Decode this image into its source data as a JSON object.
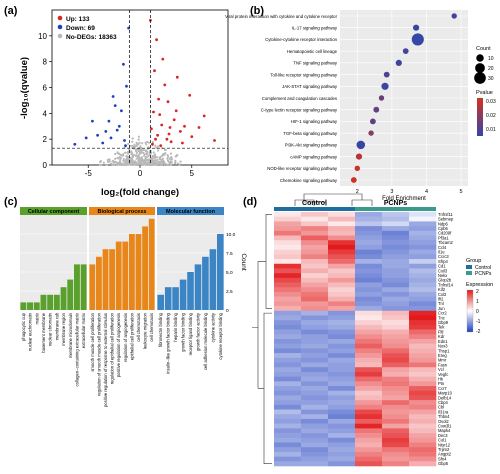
{
  "panel_labels": [
    "(a)",
    "(b)",
    "(c)",
    "(d)"
  ],
  "colors": {
    "up": "#d62728",
    "down": "#1f3fbf",
    "nodeg": "#b8b8b8",
    "go_cc": "#5aa02c",
    "go_bp": "#e8861a",
    "go_mf": "#3b85c4",
    "control": "#1f6e9f",
    "pcnps": "#3a9a8d",
    "heat_high": "#e31a1c",
    "heat_mid": "#ffffff",
    "heat_low": "#1f3fbf"
  },
  "chart_data": [
    {
      "type": "scatter",
      "panel": "a",
      "title": "",
      "xlabel": "log₂(fold change)",
      "ylabel": "-log₁₀(qvalue)",
      "xlim": [
        -8.5,
        8.5
      ],
      "ylim": [
        0,
        12
      ],
      "xticks": [
        -5,
        0,
        5
      ],
      "yticks": [
        0,
        2,
        4,
        6,
        8,
        10
      ],
      "grid": false,
      "legend_position": "top-left",
      "legend": [
        "Up: 133",
        "Down: 69",
        "No-DEGs: 18363"
      ],
      "threshold_lines": {
        "x": [
          -1,
          1
        ],
        "y": 1.3
      },
      "series": [
        {
          "name": "Up: 133",
          "color_key": "up",
          "count": 133,
          "points": [
            [
              1.5,
              2.0
            ],
            [
              2.1,
              3.1
            ],
            [
              2.8,
              2.4
            ],
            [
              3.5,
              4.2
            ],
            [
              1.2,
              1.6
            ],
            [
              4.3,
              3.0
            ],
            [
              5.0,
              2.2
            ],
            [
              1.8,
              5.1
            ],
            [
              2.4,
              6.2
            ],
            [
              3.0,
              1.8
            ],
            [
              6.2,
              3.8
            ],
            [
              1.4,
              7.3
            ],
            [
              2.7,
              4.9
            ],
            [
              3.9,
              2.6
            ],
            [
              1.6,
              9.7
            ],
            [
              2.2,
              8.2
            ],
            [
              4.8,
              5.4
            ],
            [
              1.1,
              2.8
            ],
            [
              3.3,
              3.5
            ],
            [
              2.0,
              1.5
            ],
            [
              5.7,
              2.9
            ],
            [
              1.3,
              4.1
            ],
            [
              2.6,
              2.0
            ],
            [
              4.1,
              1.7
            ],
            [
              1.9,
              3.9
            ],
            [
              1.0,
              11.2
            ],
            [
              3.6,
              6.8
            ],
            [
              2.9,
              2.9
            ],
            [
              1.7,
              2.3
            ],
            [
              7.2,
              1.9
            ]
          ]
        },
        {
          "name": "Down: 69",
          "color_key": "down",
          "count": 69,
          "points": [
            [
              -1.5,
              1.9
            ],
            [
              -2.2,
              2.7
            ],
            [
              -3.0,
              3.4
            ],
            [
              -1.8,
              4.2
            ],
            [
              -4.1,
              2.3
            ],
            [
              -2.6,
              5.3
            ],
            [
              -1.3,
              6.1
            ],
            [
              -3.6,
              1.7
            ],
            [
              -5.2,
              2.1
            ],
            [
              -2.0,
              3.0
            ],
            [
              -1.1,
              10.6
            ],
            [
              -6.3,
              1.6
            ],
            [
              -2.8,
              2.1
            ],
            [
              -1.6,
              7.8
            ],
            [
              -3.3,
              2.6
            ],
            [
              -4.6,
              3.4
            ],
            [
              -1.4,
              1.5
            ],
            [
              -2.4,
              4.6
            ]
          ]
        },
        {
          "name": "No-DEGs: 18363",
          "color_key": "nodeg",
          "count": 18363
        }
      ]
    },
    {
      "type": "scatter",
      "panel": "b",
      "title": "",
      "xlabel": "Fold Enrichment",
      "ylabel": "",
      "xlim": [
        1.5,
        5.2
      ],
      "xticks": [
        2,
        3,
        4,
        5
      ],
      "grid": true,
      "legend_position": "right",
      "size_legend_title": "Count",
      "size_legend": [
        10,
        20,
        30
      ],
      "color_legend_title": "Pvalue",
      "color_legend_ticks": [
        "0.03",
        "0.02",
        "0.01"
      ],
      "color_scale": [
        "#d7301f",
        "#3346a8"
      ],
      "pvalue_range": [
        0.0,
        0.035
      ],
      "categories": [
        "Viral protein interaction with cytokine and cytokine receptor",
        "IL-17 signaling pathway",
        "Cytokine-cytokine receptor interaction",
        "Hematopoietic cell lineage",
        "TNF signaling pathway",
        "Toll-like receptor signaling pathway",
        "JAK-STAT signaling pathway",
        "Complement and coagulation cascades",
        "C-type lectin receptor signaling pathway",
        "HIF-1 signaling pathway",
        "TGF-beta signaling pathway",
        "PI3K-Akt signaling pathway",
        "cAMP signaling pathway",
        "NOD-like receptor signaling pathway",
        "Chemokine signaling pathway"
      ],
      "x": [
        4.8,
        3.7,
        3.75,
        3.4,
        3.2,
        2.85,
        2.8,
        2.7,
        2.55,
        2.45,
        2.4,
        2.1,
        2.05,
        2.0,
        1.9
      ],
      "count": [
        4,
        6,
        33,
        5,
        6,
        5,
        9,
        4,
        5,
        5,
        4,
        14,
        6,
        4,
        5
      ],
      "pvalue": [
        0.003,
        0.001,
        0.0005,
        0.004,
        0.003,
        0.006,
        0.002,
        0.012,
        0.01,
        0.009,
        0.018,
        0.001,
        0.028,
        0.032,
        0.033
      ]
    },
    {
      "type": "bar",
      "panel": "c",
      "title": "",
      "xlabel": "",
      "ylabel": "Count",
      "ylim": [
        0,
        12.5
      ],
      "yticks": [
        0,
        2.5,
        5.0,
        7.5,
        10.0
      ],
      "grid": true,
      "groups": [
        {
          "name": "Cellular component",
          "color_key": "go_cc",
          "categories": [
            "phagocytic cup",
            "nuclear euchromatin",
            "matrix",
            "basement membrane",
            "nuclear chromatin",
            "membrane raft",
            "membrane region",
            "membrane microdomain",
            "collagen−containing extracellular matrix",
            "extracellular matrix"
          ],
          "values": [
            1,
            1,
            1,
            2,
            2,
            2,
            3,
            4,
            6,
            6
          ]
        },
        {
          "name": "Biological process",
          "color_key": "go_bp",
          "categories": [
            "smooth muscle cell proliferation",
            "regulation of smooth muscle cell proliferation",
            "positive regulation of response to external stimulus",
            "regulation of epithelial cell proliferation",
            "positive regulation of angiogenesis",
            "regulation of angiogenesis",
            "epithelial cell proliferation",
            "cell chemotaxis",
            "leukocyte migration",
            "cell chemotaxis"
          ],
          "values": [
            6,
            7,
            8,
            8,
            9,
            9,
            10,
            10,
            11,
            12
          ]
        },
        {
          "name": "Molecular function",
          "color_key": "go_mf",
          "categories": [
            "fibronectin binding",
            "insulin−like growth factor binding",
            "heparin binding",
            "growth factor binding",
            "receptor ligand binding",
            "growth factor activity",
            "cell adhesion molecule binding",
            "cytokine activity",
            "cytokine receptor binding"
          ],
          "values": [
            2,
            3,
            3,
            4,
            5,
            6,
            7,
            8,
            10
          ]
        }
      ]
    },
    {
      "type": "heatmap",
      "panel": "d",
      "title": "",
      "column_groups": [
        "Control",
        "PCNPs"
      ],
      "column_annotation_legend_title": "Group",
      "column_annotation_legend": [
        "Control",
        "PCNPs"
      ],
      "color_legend_title": "Expression",
      "color_range": [
        -2,
        2
      ],
      "color_ticks": [
        "2",
        "1",
        "0",
        "-1",
        "-2"
      ],
      "rows": [
        "Tnfrsf11",
        "Sebmep",
        "Ndp6",
        "Cpb6",
        "Cd209f",
        "Pf3a1",
        "Tbcam2",
        "Ccl4",
        "Il1e",
        "Ccrc3",
        "Sfrp4",
        "Cd1",
        "Cxil3",
        "Nekx",
        "Glop2b",
        "Tnfrsf14",
        "Kif2",
        "Cxl3",
        "Ifi2",
        "Tnl",
        "Jun",
        "Ccr2",
        "Tnc",
        "Gbp9",
        "Tek",
        "Fltl",
        "Kdr",
        "Edn1",
        "Nox3",
        "Thsp1",
        "Ereg",
        "Mmr",
        "Fasn",
        "Vcl",
        "Vegfc",
        "Hk",
        "Ptn",
        "Ccr7",
        "Marp10",
        "Defb14",
        "Cbp4",
        "Cbl",
        "Il31ra",
        "Thbs4",
        "Ovol2",
        "Cxw3l1",
        "Mapk4",
        "Dec3",
        "Col1",
        "Ntsr12",
        "Trjim2",
        "Angpt2",
        "Sfn4",
        "Gbp5"
      ],
      "values": [
        [
          0.2,
          0.5,
          0.3,
          -0.9,
          -0.6,
          -0.3
        ],
        [
          0.4,
          0.2,
          0.6,
          -0.8,
          -0.7,
          -0.1
        ],
        [
          0.8,
          0.5,
          0.2,
          -0.6,
          -0.4,
          -0.9
        ],
        [
          0.9,
          1.1,
          0.7,
          -1.2,
          -0.9,
          -1.0
        ],
        [
          1.2,
          0.9,
          0.6,
          -1.1,
          -1.3,
          -0.8
        ],
        [
          0.6,
          1.4,
          1.0,
          -1.0,
          -1.2,
          -0.9
        ],
        [
          0.3,
          1.0,
          1.8,
          -0.9,
          -1.1,
          -1.0
        ],
        [
          0.2,
          0.8,
          2.0,
          -1.0,
          -1.2,
          -1.1
        ],
        [
          0.4,
          0.9,
          1.7,
          -1.3,
          -1.1,
          -0.9
        ],
        [
          0.5,
          1.1,
          1.5,
          -1.2,
          -1.0,
          -1.0
        ],
        [
          0.2,
          0.6,
          1.3,
          -0.8,
          -0.9,
          -0.5
        ],
        [
          1.8,
          0.5,
          0.8,
          -1.2,
          -0.9,
          -1.0
        ],
        [
          1.5,
          0.7,
          0.5,
          -1.1,
          -1.0,
          -0.7
        ],
        [
          1.9,
          0.4,
          0.6,
          -1.2,
          -1.0,
          -0.8
        ],
        [
          1.6,
          0.6,
          0.9,
          -1.3,
          -1.1,
          -0.9
        ],
        [
          1.4,
          0.8,
          0.6,
          -1.0,
          -1.2,
          -0.8
        ],
        [
          1.2,
          1.0,
          0.4,
          -1.1,
          -0.9,
          -0.7
        ],
        [
          1.0,
          1.2,
          0.5,
          -1.0,
          -1.1,
          -0.9
        ],
        [
          0.8,
          1.3,
          0.7,
          -1.2,
          -0.9,
          -1.0
        ],
        [
          0.9,
          0.9,
          1.1,
          -1.1,
          -1.0,
          -1.2
        ],
        [
          0.7,
          1.0,
          0.8,
          -0.9,
          -1.1,
          -1.1
        ],
        [
          -1.0,
          -0.8,
          -1.1,
          0.3,
          0.6,
          1.9
        ],
        [
          -0.9,
          -1.1,
          -1.0,
          0.2,
          0.5,
          2.0
        ],
        [
          -1.1,
          -0.9,
          -0.8,
          0.4,
          0.3,
          1.8
        ],
        [
          -1.2,
          -1.0,
          -0.9,
          0.6,
          0.4,
          1.7
        ],
        [
          -1.0,
          -1.2,
          -1.1,
          0.8,
          0.7,
          1.3
        ],
        [
          -0.9,
          -1.0,
          -1.2,
          1.0,
          0.8,
          1.1
        ],
        [
          -1.1,
          -1.0,
          -0.9,
          1.2,
          0.9,
          0.8
        ],
        [
          -1.0,
          -0.9,
          -1.1,
          1.4,
          1.0,
          0.6
        ],
        [
          -1.2,
          -1.1,
          -1.0,
          1.1,
          1.3,
          0.7
        ],
        [
          -0.8,
          -1.0,
          -1.2,
          0.9,
          1.5,
          0.8
        ],
        [
          -1.0,
          -1.1,
          -0.9,
          0.7,
          1.6,
          0.9
        ],
        [
          -1.1,
          -0.9,
          -1.0,
          0.6,
          1.4,
          1.2
        ],
        [
          -0.9,
          -1.2,
          -1.0,
          1.5,
          0.8,
          0.6
        ],
        [
          -1.0,
          -1.0,
          -1.1,
          1.7,
          0.7,
          0.5
        ],
        [
          -1.2,
          -0.9,
          -1.0,
          1.3,
          1.1,
          0.7
        ],
        [
          -0.8,
          -1.1,
          -0.9,
          1.0,
          1.2,
          0.9
        ],
        [
          -1.0,
          -0.9,
          -1.2,
          0.8,
          1.0,
          1.4
        ],
        [
          -1.1,
          -1.0,
          -0.8,
          0.5,
          0.9,
          1.6
        ],
        [
          -0.9,
          -1.1,
          -1.0,
          0.6,
          0.8,
          1.5
        ],
        [
          -1.0,
          -1.0,
          -0.9,
          0.9,
          1.3,
          1.0
        ],
        [
          -1.2,
          -0.8,
          -1.0,
          1.1,
          1.0,
          1.1
        ],
        [
          -0.7,
          -1.1,
          -1.2,
          1.6,
          0.9,
          0.8
        ],
        [
          -0.9,
          -0.8,
          -1.3,
          1.8,
          1.0,
          0.6
        ],
        [
          -1.0,
          -1.2,
          -0.9,
          1.4,
          1.2,
          0.7
        ],
        [
          -0.8,
          -1.0,
          -1.1,
          1.9,
          0.8,
          0.5
        ],
        [
          -1.1,
          -0.9,
          -1.0,
          1.2,
          1.4,
          0.6
        ],
        [
          -1.0,
          -1.1,
          -0.8,
          1.0,
          1.5,
          0.8
        ],
        [
          -0.9,
          -1.0,
          -1.2,
          0.8,
          1.7,
          0.9
        ],
        [
          -1.2,
          -0.9,
          -1.0,
          0.7,
          1.6,
          1.1
        ],
        [
          -1.0,
          -1.2,
          -0.9,
          0.9,
          1.2,
          1.3
        ],
        [
          -0.8,
          -1.1,
          -1.0,
          1.1,
          1.0,
          1.2
        ],
        [
          -1.1,
          -1.0,
          -0.9,
          1.3,
          0.9,
          1.0
        ],
        [
          -0.9,
          -0.9,
          -1.1,
          1.5,
          1.1,
          0.7
        ]
      ]
    }
  ]
}
